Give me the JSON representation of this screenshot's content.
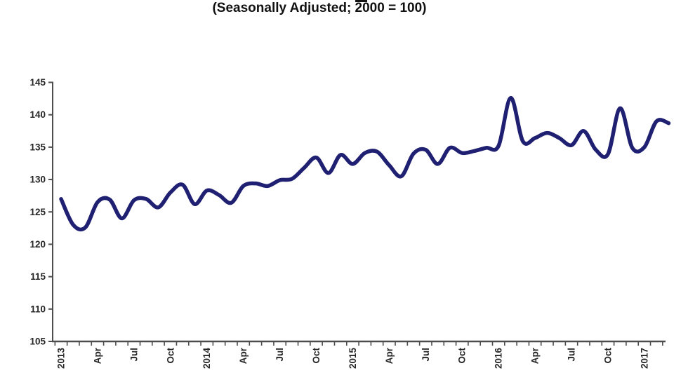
{
  "title": "(Seasonally Adjusted; 2000 = 100)",
  "colors": {
    "line": "#202072",
    "axis": "#4d4d4d",
    "tick_label": "#262626",
    "background": "#ffffff"
  },
  "chart_data": {
    "type": "line",
    "title": "(Seasonally Adjusted; 2000 = 100)",
    "smooth": true,
    "grid": false,
    "legend_position": "none",
    "ylim": [
      105,
      145
    ],
    "yticks": [
      105,
      110,
      115,
      120,
      125,
      130,
      135,
      140,
      145
    ],
    "x_tick_labels": [
      {
        "i": 0,
        "label": "2013"
      },
      {
        "i": 3,
        "label": "Apr"
      },
      {
        "i": 6,
        "label": "Jul"
      },
      {
        "i": 9,
        "label": "Oct"
      },
      {
        "i": 12,
        "label": "2014"
      },
      {
        "i": 15,
        "label": "Apr"
      },
      {
        "i": 18,
        "label": "Jul"
      },
      {
        "i": 21,
        "label": "Oct"
      },
      {
        "i": 24,
        "label": "2015"
      },
      {
        "i": 27,
        "label": "Apr"
      },
      {
        "i": 30,
        "label": "Jul"
      },
      {
        "i": 33,
        "label": "Oct"
      },
      {
        "i": 36,
        "label": "2016"
      },
      {
        "i": 39,
        "label": "Apr"
      },
      {
        "i": 42,
        "label": "Jul"
      },
      {
        "i": 45,
        "label": "Oct"
      },
      {
        "i": 48,
        "label": "2017"
      }
    ],
    "categories": [
      "Jan 2013",
      "Feb 2013",
      "Mar 2013",
      "Apr 2013",
      "May 2013",
      "Jun 2013",
      "Jul 2013",
      "Aug 2013",
      "Sep 2013",
      "Oct 2013",
      "Nov 2013",
      "Dec 2013",
      "Jan 2014",
      "Feb 2014",
      "Mar 2014",
      "Apr 2014",
      "May 2014",
      "Jun 2014",
      "Jul 2014",
      "Aug 2014",
      "Sep 2014",
      "Oct 2014",
      "Nov 2014",
      "Dec 2014",
      "Jan 2015",
      "Feb 2015",
      "Mar 2015",
      "Apr 2015",
      "May 2015",
      "Jun 2015",
      "Jul 2015",
      "Aug 2015",
      "Sep 2015",
      "Oct 2015",
      "Nov 2015",
      "Dec 2015",
      "Jan 2016",
      "Feb 2016",
      "Mar 2016",
      "Apr 2016",
      "May 2016",
      "Jun 2016",
      "Jul 2016",
      "Aug 2016",
      "Sep 2016",
      "Oct 2016",
      "Nov 2016",
      "Dec 2016",
      "Jan 2017",
      "Feb 2017",
      "Mar 2017"
    ],
    "values": [
      127.0,
      123.0,
      122.6,
      126.5,
      126.9,
      124.0,
      126.8,
      127.0,
      125.7,
      128.0,
      129.2,
      126.2,
      128.3,
      127.6,
      126.4,
      129.0,
      129.4,
      129.0,
      129.9,
      130.1,
      131.8,
      133.4,
      131.0,
      133.8,
      132.4,
      134.1,
      134.3,
      132.2,
      130.5,
      134.0,
      134.6,
      132.4,
      134.9,
      134.1,
      134.4,
      134.9,
      135.2,
      142.6,
      135.9,
      136.4,
      137.2,
      136.4,
      135.3,
      137.5,
      134.6,
      133.9,
      141.0,
      134.9,
      135.0,
      139.0,
      138.7
    ]
  }
}
